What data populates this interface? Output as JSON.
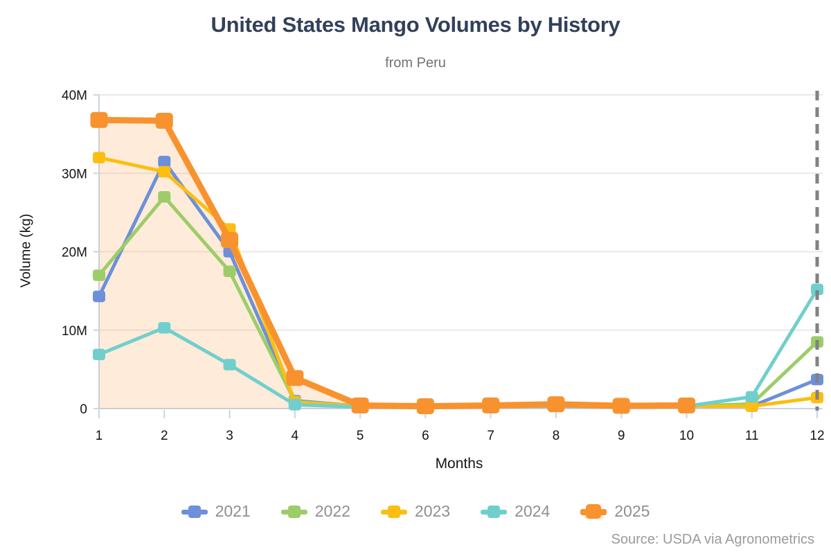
{
  "chart_data": {
    "type": "line",
    "title": "United States Mango Volumes by History",
    "subtitle": "from Peru",
    "xlabel": "Months",
    "ylabel": "Volume (kg)",
    "source": "Source: USDA via Agronometrics",
    "legend_position": "bottom",
    "grid": true,
    "x_ticks": [
      1,
      2,
      3,
      4,
      5,
      6,
      7,
      8,
      9,
      10,
      11,
      12
    ],
    "y_ticks": [
      {
        "value_millions": 0,
        "label": "0"
      },
      {
        "value_millions": 10,
        "label": "10M"
      },
      {
        "value_millions": 20,
        "label": "20M"
      },
      {
        "value_millions": 30,
        "label": "30M"
      },
      {
        "value_millions": 40,
        "label": "40M"
      }
    ],
    "y_axis_max_millions": 40,
    "values_unit": "millions of kg",
    "annotations": {
      "dashed_vline_at_month": 12,
      "dashed_line_color": "#828282"
    },
    "axis_color": "#C9D3E8",
    "gridline_color": "#E9E9E9",
    "series": [
      {
        "name": "2021",
        "color": "#6D90D8",
        "emphasis": false,
        "area_fill": false,
        "values_millions": [
          14.3,
          31.5,
          20.0,
          1.0,
          0.3,
          0.25,
          0.3,
          0.4,
          0.25,
          0.3,
          0.3,
          3.7
        ]
      },
      {
        "name": "2022",
        "color": "#9CCD68",
        "emphasis": false,
        "area_fill": false,
        "values_millions": [
          17.0,
          27.0,
          17.5,
          0.9,
          0.3,
          0.25,
          0.3,
          0.4,
          0.25,
          0.3,
          0.6,
          8.5
        ]
      },
      {
        "name": "2023",
        "color": "#FBBE11",
        "emphasis": false,
        "area_fill": false,
        "values_millions": [
          32.0,
          30.2,
          22.9,
          0.8,
          0.3,
          0.25,
          0.3,
          0.4,
          0.25,
          0.3,
          0.3,
          1.4
        ]
      },
      {
        "name": "2024",
        "color": "#70CFCD",
        "emphasis": false,
        "area_fill": false,
        "values_millions": [
          6.9,
          10.3,
          5.6,
          0.5,
          0.2,
          0.2,
          0.25,
          0.3,
          0.2,
          0.3,
          1.5,
          15.2
        ]
      },
      {
        "name": "2025",
        "color": "#F8922F",
        "emphasis": true,
        "area_fill": true,
        "area_fill_opacity": 0.18,
        "values_millions": [
          36.8,
          36.7,
          21.5,
          3.9,
          0.4,
          0.3,
          0.4,
          0.55,
          0.35,
          0.4
        ]
      }
    ]
  }
}
